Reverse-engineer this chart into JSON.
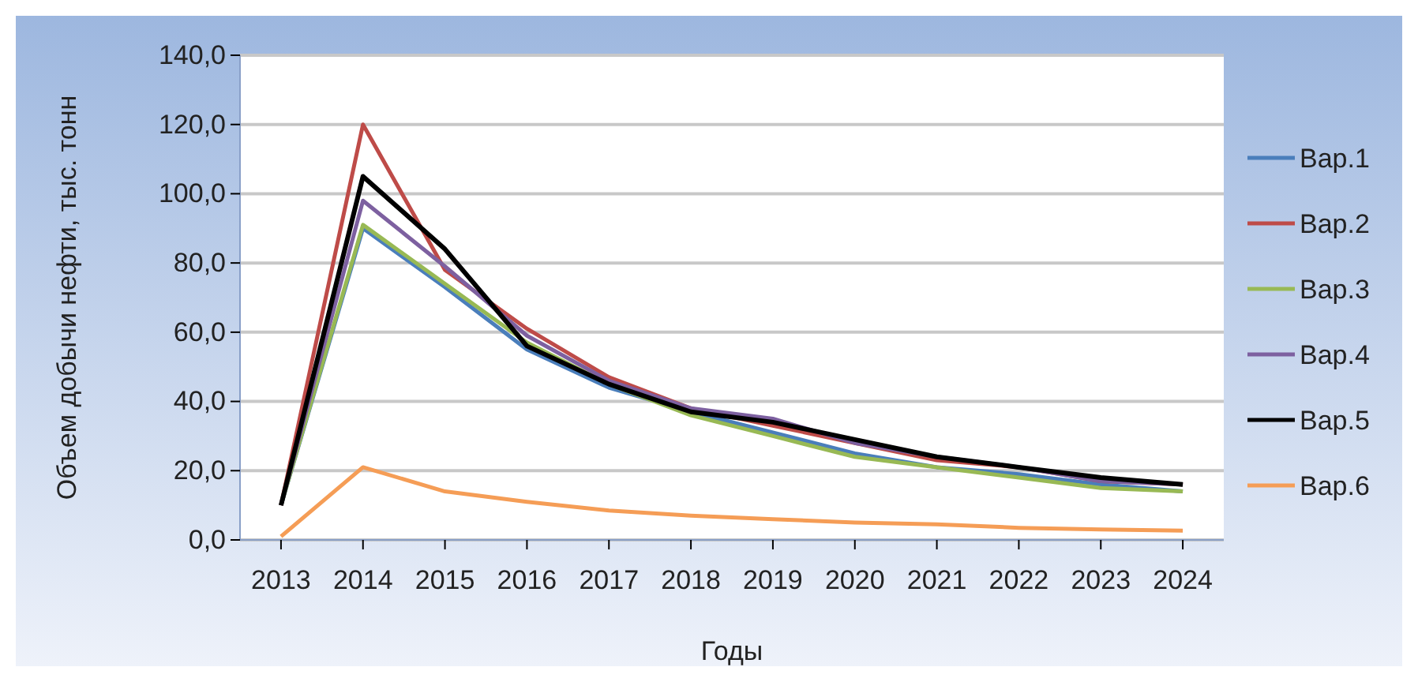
{
  "chart_data": {
    "type": "line",
    "xlabel": "Годы",
    "ylabel": "Объем добычи нефти, тыс. тонн",
    "categories": [
      "2013",
      "2014",
      "2015",
      "2016",
      "2017",
      "2018",
      "2019",
      "2020",
      "2021",
      "2022",
      "2023",
      "2024"
    ],
    "series": [
      {
        "name": "Вар.1",
        "color": "#4a7ebb",
        "values": [
          10,
          90,
          73,
          55,
          44,
          37,
          31,
          25,
          21,
          19,
          16,
          14
        ]
      },
      {
        "name": "Вар.2",
        "color": "#be4b48",
        "values": [
          10,
          120,
          78,
          61,
          47,
          38,
          33,
          28,
          23,
          21,
          17,
          16
        ]
      },
      {
        "name": "Вар.3",
        "color": "#98b954",
        "values": [
          10,
          91,
          74,
          57,
          45,
          36,
          30,
          24,
          21,
          18,
          15,
          14
        ]
      },
      {
        "name": "Вар.4",
        "color": "#7d60a0",
        "values": [
          10,
          98,
          79,
          59,
          46,
          38,
          35,
          28,
          24,
          21,
          17,
          16
        ]
      },
      {
        "name": "Вар.5",
        "color": "#000000",
        "values": [
          10,
          105,
          84,
          56,
          45,
          37,
          34,
          29,
          24,
          21,
          18,
          16
        ]
      },
      {
        "name": "Вар.6",
        "color": "#f59d56",
        "values": [
          1,
          21,
          14,
          11,
          8.5,
          7,
          6,
          5,
          4.5,
          3.5,
          3,
          2.7
        ]
      }
    ],
    "ylim": [
      0,
      140
    ],
    "yticks": [
      {
        "value": 0,
        "label": "0,0"
      },
      {
        "value": 20,
        "label": "20,0"
      },
      {
        "value": 40,
        "label": "40,0"
      },
      {
        "value": 60,
        "label": "60,0"
      },
      {
        "value": 80,
        "label": "80,0"
      },
      {
        "value": 100,
        "label": "100,0"
      },
      {
        "value": 120,
        "label": "120,0"
      },
      {
        "value": 140,
        "label": "140,0"
      }
    ],
    "grid": "y",
    "legend": "right",
    "marker": "none",
    "line_style": "solid"
  }
}
